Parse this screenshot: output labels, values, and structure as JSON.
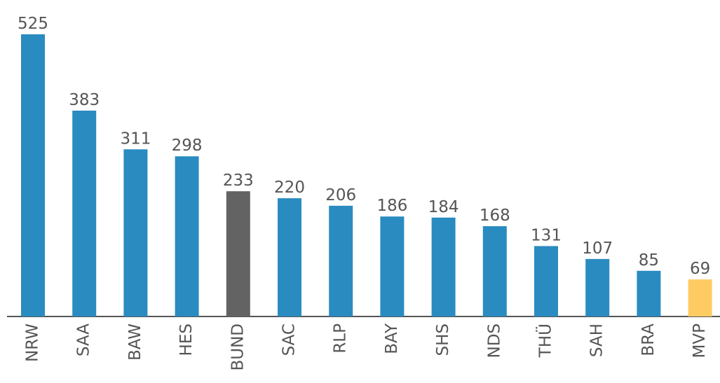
{
  "chart_data": {
    "type": "bar",
    "categories": [
      "NRW",
      "SAA",
      "BAW",
      "HES",
      "BUND",
      "SAC",
      "RLP",
      "BAY",
      "SHS",
      "NDS",
      "THÜ",
      "SAH",
      "BRA",
      "MVP"
    ],
    "values": [
      525,
      383,
      311,
      298,
      233,
      220,
      206,
      186,
      184,
      168,
      131,
      107,
      85,
      69
    ],
    "colors": [
      "#2a8bc0",
      "#2a8bc0",
      "#2a8bc0",
      "#2a8bc0",
      "#636363",
      "#2a8bc0",
      "#2a8bc0",
      "#2a8bc0",
      "#2a8bc0",
      "#2a8bc0",
      "#2a8bc0",
      "#2a8bc0",
      "#2a8bc0",
      "#fecb63"
    ]
  }
}
